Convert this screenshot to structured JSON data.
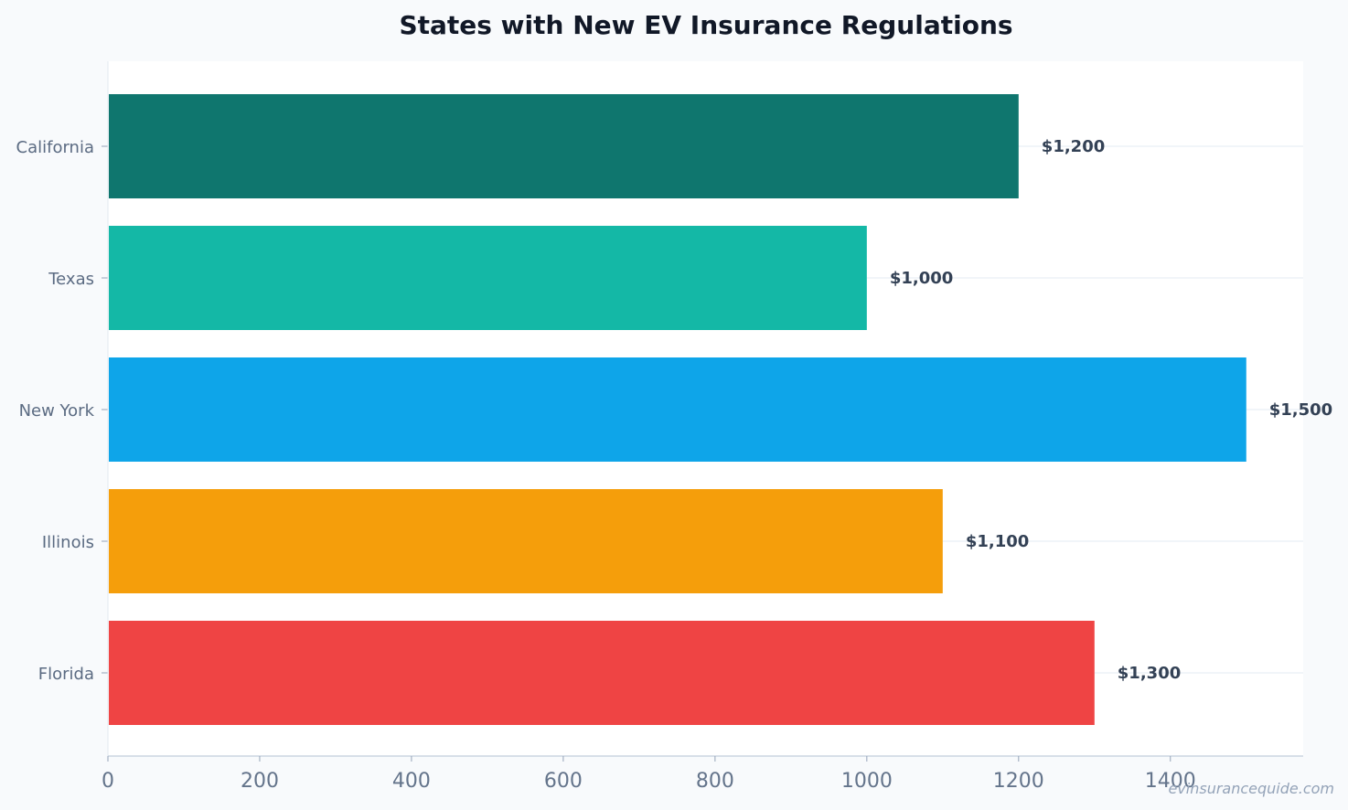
{
  "watermark": "evinsurancequide.com",
  "chart_data": {
    "type": "bar",
    "orientation": "horizontal",
    "title": "States with New EV Insurance Regulations",
    "xlabel": "",
    "ylabel": "",
    "categories": [
      "California",
      "Texas",
      "New York",
      "Illinois",
      "Florida"
    ],
    "values": [
      1200,
      1000,
      1500,
      1100,
      1300
    ],
    "value_labels": [
      "$1,200",
      "$1,000",
      "$1,500",
      "$1,100",
      "$1,300"
    ],
    "colors": [
      "#0f766e",
      "#14b8a6",
      "#0ea5e9",
      "#f59e0b",
      "#ef4444"
    ],
    "xlim": [
      0,
      1575
    ],
    "xticks": [
      0,
      200,
      400,
      600,
      800,
      1000,
      1200,
      1400
    ],
    "grid": true,
    "legend": "none"
  }
}
